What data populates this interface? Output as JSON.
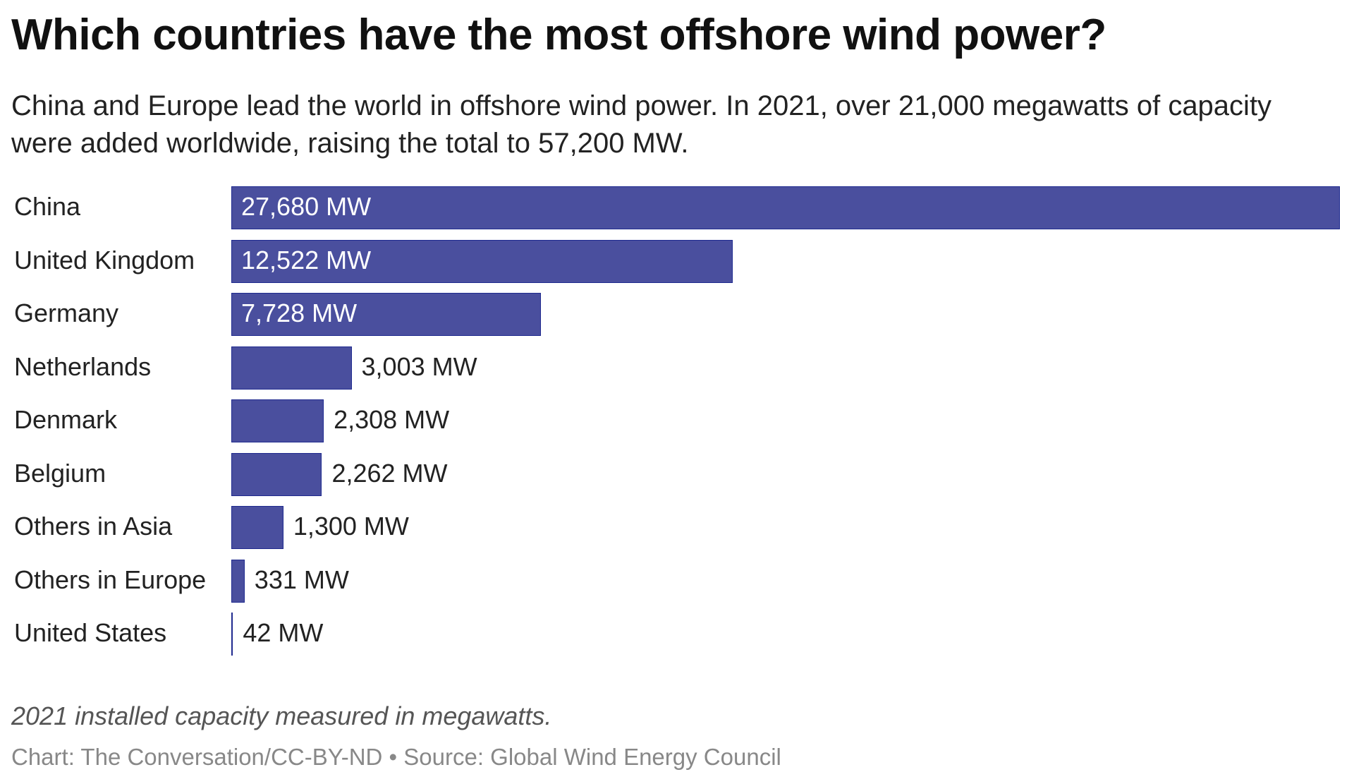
{
  "chart_data": {
    "type": "bar",
    "orientation": "horizontal",
    "title": "Which countries have the most offshore wind power?",
    "subtitle": "China and Europe lead the world in offshore wind power. In 2021, over 21,000 megawatts of capacity were added worldwide, raising the total to 57,200 MW.",
    "categories": [
      "China",
      "United Kingdom",
      "Germany",
      "Netherlands",
      "Denmark",
      "Belgium",
      "Others in Asia",
      "Others in Europe",
      "United States"
    ],
    "values": [
      27680,
      12522,
      7728,
      3003,
      2308,
      2262,
      1300,
      331,
      42
    ],
    "value_labels": [
      "27,680 MW",
      "12,522 MW",
      "7,728 MW",
      "3,003 MW",
      "2,308 MW",
      "2,262 MW",
      "1,300 MW",
      "331 MW",
      "42 MW"
    ],
    "unit": "MW",
    "xlim": [
      0,
      27680
    ],
    "grid": false,
    "bar_color": "#4a4f9e",
    "note": "2021 installed capacity measured in megawatts.",
    "source": "Chart: The Conversation/CC-BY-ND • Source: Global Wind Energy Council"
  }
}
